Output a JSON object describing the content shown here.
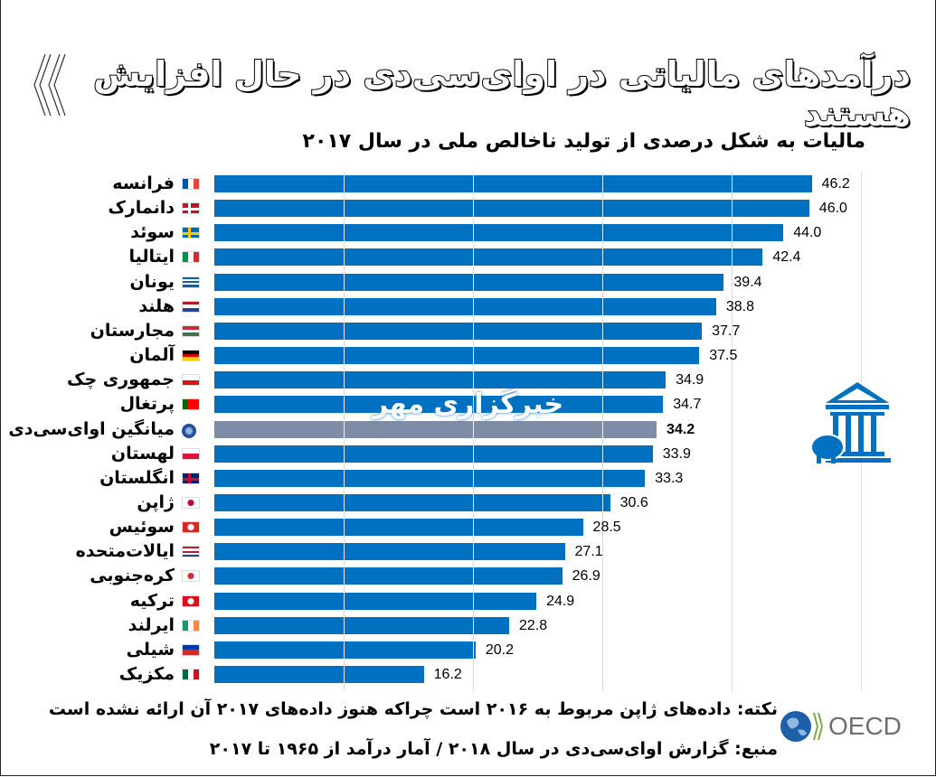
{
  "header": {
    "title": "درآمدهای مالیاتی در اوای‌سی‌دی در حال افزایش هستند"
  },
  "watermark": "خبرگزاری مهر",
  "chart_data": {
    "type": "bar",
    "orientation": "horizontal",
    "title": "مالیات به شکل درصدی از تولید ناخالص ملی  در سال ۲۰۱۷",
    "xlim": [
      0,
      50
    ],
    "grid": true,
    "bar_color": "#0070c0",
    "highlight_color": "#7f8ca6",
    "categories": [
      "فرانسه",
      "دانمارک",
      "سوئد",
      "ایتالیا",
      "یونان",
      "هلند",
      "مجارستان",
      "آلمان",
      "جمهوری چک",
      "پرتغال",
      "میانگین اوای‌سی‌دی",
      "لهستان",
      "انگلستان",
      "ژاپن",
      "سوئیس",
      "ایالات‌متحده",
      "کره‌جنوبی",
      "ترکیه",
      "ایرلند",
      "شیلی",
      "مکزیک"
    ],
    "values": [
      46.2,
      46.0,
      44.0,
      42.4,
      39.4,
      38.8,
      37.7,
      37.5,
      34.9,
      34.7,
      34.2,
      33.9,
      33.3,
      30.6,
      28.5,
      27.1,
      26.9,
      24.9,
      22.8,
      20.2,
      16.2
    ],
    "value_labels": [
      "46.2",
      "46.0",
      "44.0",
      "42.4",
      "39.4",
      "38.8",
      "37.7",
      "37.5",
      "34.9",
      "34.7",
      "34.2",
      "33.9",
      "33.3",
      "30.6",
      "28.5",
      "27.1",
      "26.9",
      "24.9",
      "22.8",
      "20.2",
      "16.2"
    ],
    "highlight_index": 10,
    "flags": [
      {
        "d": "v",
        "c": [
          "#0055a4",
          "#fff",
          "#ef4135"
        ]
      },
      {
        "d": "x",
        "c": [
          "#c8102e",
          "#fff"
        ]
      },
      {
        "d": "x",
        "c": [
          "#006aa7",
          "#fecc00"
        ]
      },
      {
        "d": "v",
        "c": [
          "#009246",
          "#fff",
          "#ce2b37"
        ]
      },
      {
        "d": "h",
        "c": [
          "#0d5eaf",
          "#fff",
          "#0d5eaf",
          "#fff",
          "#0d5eaf"
        ]
      },
      {
        "d": "h",
        "c": [
          "#ae1c28",
          "#fff",
          "#21468b"
        ]
      },
      {
        "d": "h",
        "c": [
          "#cd2a3e",
          "#fff",
          "#436f4d"
        ]
      },
      {
        "d": "h",
        "c": [
          "#000",
          "#dd0000",
          "#ffce00"
        ]
      },
      {
        "d": "h",
        "c": [
          "#fff",
          "#d7141a"
        ]
      },
      {
        "d": "v",
        "c": [
          "#006600",
          "#ff0000",
          "#ff0000"
        ]
      },
      {
        "d": "g",
        "c": [
          "#1f4e9a",
          "#fff"
        ]
      },
      {
        "d": "h",
        "c": [
          "#fff",
          "#dc143c"
        ]
      },
      {
        "d": "x",
        "c": [
          "#012169",
          "#c8102e"
        ]
      },
      {
        "d": "dot",
        "c": [
          "#fff",
          "#bc002d"
        ]
      },
      {
        "d": "dot",
        "c": [
          "#d52b1e",
          "#fff"
        ]
      },
      {
        "d": "h",
        "c": [
          "#b22234",
          "#fff",
          "#b22234",
          "#fff",
          "#3c3b6e"
        ]
      },
      {
        "d": "dot",
        "c": [
          "#fff",
          "#cd2e3a"
        ]
      },
      {
        "d": "dot",
        "c": [
          "#e30a17",
          "#fff"
        ]
      },
      {
        "d": "v",
        "c": [
          "#169b62",
          "#fff",
          "#ff883e"
        ]
      },
      {
        "d": "h",
        "c": [
          "#0039a6",
          "#d52b1e"
        ]
      },
      {
        "d": "v",
        "c": [
          "#006847",
          "#fff",
          "#ce1126"
        ]
      }
    ]
  },
  "footer": {
    "note": "نکته: داده‌های ژاپن مربوط به ۲۰۱۶ است چراکه هنوز داده‌های ۲۰۱۷ آن ارائه نشده است",
    "source": "منبع: گزارش اوای‌سی‌دی در سال ۲۰۱۸ / آمار درآمد از ۱۹۶۵ تا ۲۰۱۷",
    "logo": "OECD"
  }
}
